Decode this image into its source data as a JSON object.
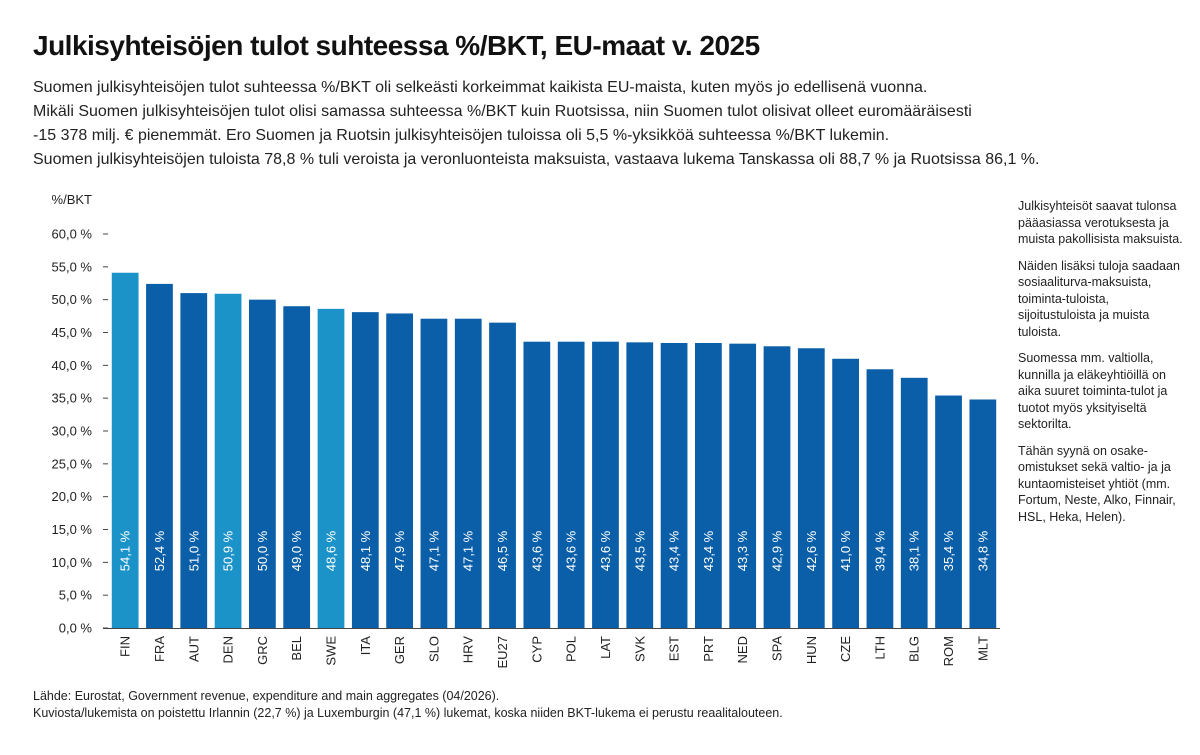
{
  "title": "Julkisyhteisöjen tulot suhteessa %/BKT, EU-maat v. 2025",
  "intro": [
    "Suomen julkisyhteisöjen tulot suhteessa %/BKT oli selkeästi korkeimmat kaikista EU-maista, kuten myös jo edellisenä vuonna.",
    "Mikäli Suomen julkisyhteisöjen tulot olisi samassa suhteessa %/BKT kuin Ruotsissa, niin Suomen tulot olisivat olleet euromääräisesti",
    "-15 378 milj. € pienemmät. Ero Suomen ja Ruotsin julkisyhteisöjen tuloissa oli 5,5 %-yksikköä suhteessa %/BKT lukemin.",
    "Suomen julkisyhteisöjen tuloista 78,8 % tuli veroista ja veronluonteista maksuista, vastaava lukema Tanskassa oli 88,7 % ja Ruotsissa 86,1 %."
  ],
  "side_notes": [
    "Julkisyhteisöt saavat tulonsa pääasiassa verotuksesta ja muista pakollisista maksuista.",
    "Näiden lisäksi tuloja saadaan sosiaaliturva-maksuista, toiminta-tuloista, sijoitustuloista ja muista tuloista.",
    "Suomessa mm. valtiolla, kunnilla ja eläkeyhtiöillä on aika suuret toiminta-tulot ja tuotot myös yksityiseltä sektorilta.",
    "Tähän syynä on osake-omistukset sekä valtio- ja ja kuntaomisteiset yhtiöt (mm. Fortum, Neste, Alko, Finnair, HSL, Heka, Helen)."
  ],
  "footer": [
    "Lähde: Eurostat, Government revenue, expenditure and main aggregates (04/2026).",
    "Kuviosta/lukemista on poistettu Irlannin (22,7 %) ja Luxemburgin (47,1 %) lukemat, koska niiden BKT-lukema ei perustu reaalitalouteen."
  ],
  "chart_data": {
    "type": "bar",
    "ylabel": "%/BKT",
    "ylim": [
      0,
      60
    ],
    "yticks": [
      0,
      5,
      10,
      15,
      20,
      25,
      30,
      35,
      40,
      45,
      50,
      55,
      60
    ],
    "ytick_labels": [
      "0,0 %",
      "5,0 %",
      "10,0 %",
      "15,0 %",
      "20,0 %",
      "25,0 %",
      "30,0 %",
      "35,0 %",
      "40,0 %",
      "45,0 %",
      "50,0 %",
      "55,0 %",
      "60,0 %"
    ],
    "grid": false,
    "categories": [
      "FIN",
      "FRA",
      "AUT",
      "DEN",
      "GRC",
      "BEL",
      "SWE",
      "ITA",
      "GER",
      "SLO",
      "HRV",
      "EU27",
      "CYP",
      "POL",
      "LAT",
      "SVK",
      "EST",
      "PRT",
      "NED",
      "SPA",
      "HUN",
      "CZE",
      "LTH",
      "BLG",
      "ROM",
      "MLT"
    ],
    "values": [
      54.1,
      52.4,
      51.0,
      50.9,
      50.0,
      49.0,
      48.6,
      48.1,
      47.9,
      47.1,
      47.1,
      46.5,
      43.6,
      43.6,
      43.6,
      43.5,
      43.4,
      43.4,
      43.3,
      42.9,
      42.6,
      41.0,
      39.4,
      38.1,
      35.4,
      34.8
    ],
    "value_labels": [
      "54,1 %",
      "52,4 %",
      "51,0 %",
      "50,9 %",
      "50,0 %",
      "49,0 %",
      "48,6 %",
      "48,1 %",
      "47,9 %",
      "47,1 %",
      "47,1 %",
      "46,5 %",
      "43,6 %",
      "43,6 %",
      "43,6 %",
      "43,5 %",
      "43,4 %",
      "43,4 %",
      "43,3 %",
      "42,9 %",
      "42,6 %",
      "41,0 %",
      "39,4 %",
      "38,1 %",
      "35,4 %",
      "34,8 %"
    ],
    "colors": {
      "default": "#0a5fa8",
      "highlight": "#1b93c8",
      "axis": "#444444",
      "value_label": "#ffffff",
      "text": "#222222"
    },
    "highlight_categories": [
      "FIN",
      "DEN",
      "SWE"
    ]
  }
}
